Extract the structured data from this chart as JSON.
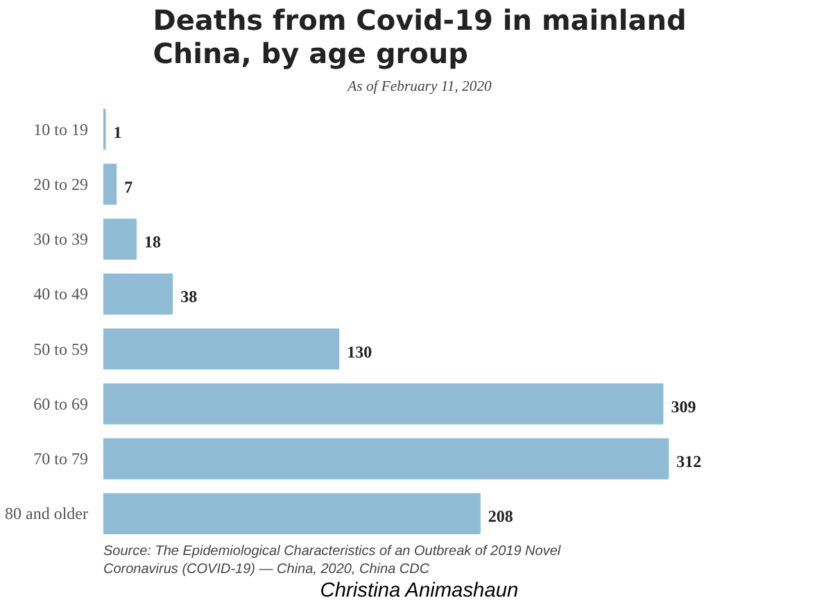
{
  "chart_data": {
    "type": "bar",
    "orientation": "horizontal",
    "title": "Deaths from Covid-19 in mainland China, by age group",
    "subtitle": "As of February 11, 2020",
    "categories": [
      "10 to 19",
      "20 to 29",
      "30 to 39",
      "40 to 49",
      "50 to 59",
      "60 to 69",
      "70 to 79",
      "80 and older"
    ],
    "values": [
      1,
      7,
      18,
      38,
      130,
      309,
      312,
      208
    ],
    "color": "#8fbcd4",
    "data_labels": true,
    "grid": false,
    "annotations": [
      "Source: The Epidemiological Characteristics of an Outbreak of 2019 Novel Coronavirus (COVID-19) — China, 2020, China CDC",
      "Christina Animashaun"
    ]
  }
}
